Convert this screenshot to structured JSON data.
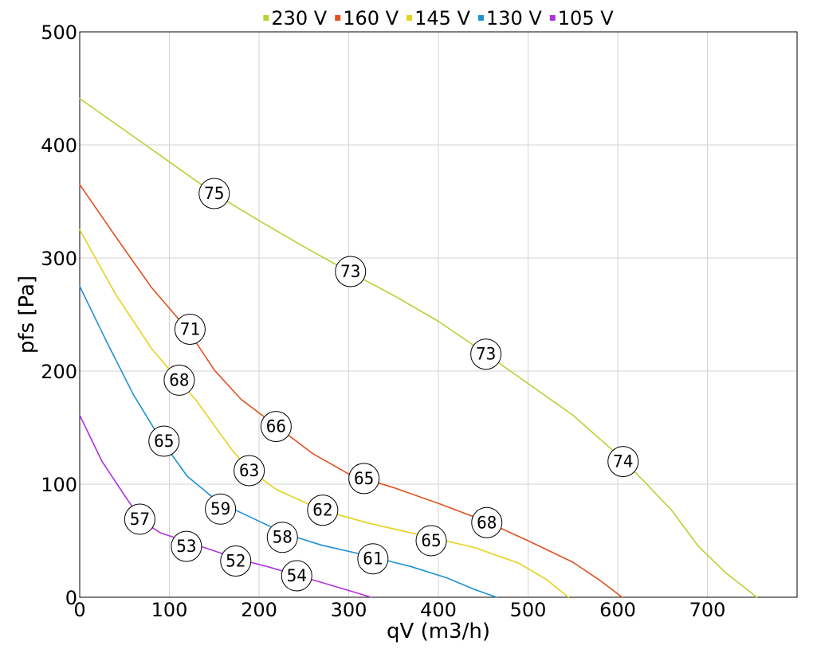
{
  "chart_data": {
    "type": "line",
    "title": "",
    "xlabel": "qV (m3/h)",
    "ylabel": "pfs [Pa]",
    "xlim": [
      0,
      800
    ],
    "ylim": [
      0,
      500
    ],
    "xticks": [
      0,
      100,
      200,
      300,
      400,
      500,
      600,
      700
    ],
    "yticks": [
      0,
      100,
      200,
      300,
      400,
      500
    ],
    "grid": true,
    "legend_position": "top-center",
    "series": [
      {
        "name": "230 V",
        "color": "#b5d334",
        "points": [
          [
            0,
            441
          ],
          [
            50,
            413
          ],
          [
            100,
            385
          ],
          [
            150,
            357
          ],
          [
            200,
            333
          ],
          [
            250,
            310
          ],
          [
            300,
            288
          ],
          [
            350,
            267
          ],
          [
            400,
            244
          ],
          [
            450,
            217
          ],
          [
            500,
            189
          ],
          [
            550,
            161
          ],
          [
            600,
            126
          ],
          [
            630,
            102
          ],
          [
            660,
            77
          ],
          [
            690,
            45
          ],
          [
            720,
            22
          ],
          [
            755,
            0
          ]
        ],
        "labels": [
          {
            "x": 150,
            "y": 357,
            "text": "75"
          },
          {
            "x": 302,
            "y": 288,
            "text": "73"
          },
          {
            "x": 453,
            "y": 215,
            "text": "73"
          },
          {
            "x": 606,
            "y": 120,
            "text": "74"
          }
        ]
      },
      {
        "name": "160 V",
        "color": "#e05020",
        "points": [
          [
            0,
            365
          ],
          [
            40,
            319
          ],
          [
            80,
            274
          ],
          [
            120,
            237
          ],
          [
            150,
            201
          ],
          [
            180,
            175
          ],
          [
            220,
            151
          ],
          [
            260,
            127
          ],
          [
            300,
            109
          ],
          [
            350,
            97
          ],
          [
            400,
            83
          ],
          [
            450,
            68
          ],
          [
            500,
            50
          ],
          [
            550,
            31
          ],
          [
            580,
            15
          ],
          [
            605,
            0
          ]
        ],
        "labels": [
          {
            "x": 123,
            "y": 237,
            "text": "71"
          },
          {
            "x": 219,
            "y": 151,
            "text": "66"
          },
          {
            "x": 317,
            "y": 105,
            "text": "65"
          },
          {
            "x": 454,
            "y": 66,
            "text": "68"
          }
        ]
      },
      {
        "name": "145 V",
        "color": "#e6d21a",
        "points": [
          [
            0,
            325
          ],
          [
            40,
            268
          ],
          [
            80,
            220
          ],
          [
            110,
            192
          ],
          [
            130,
            174
          ],
          [
            150,
            152
          ],
          [
            170,
            130
          ],
          [
            190,
            112
          ],
          [
            220,
            95
          ],
          [
            270,
            77
          ],
          [
            320,
            66
          ],
          [
            380,
            55
          ],
          [
            440,
            44
          ],
          [
            490,
            30
          ],
          [
            520,
            16
          ],
          [
            545,
            0
          ]
        ],
        "labels": [
          {
            "x": 111,
            "y": 192,
            "text": "68"
          },
          {
            "x": 189,
            "y": 112,
            "text": "63"
          },
          {
            "x": 271,
            "y": 77,
            "text": "62"
          },
          {
            "x": 392,
            "y": 50,
            "text": "65"
          }
        ]
      },
      {
        "name": "130 V",
        "color": "#1f8fd6",
        "points": [
          [
            0,
            275
          ],
          [
            30,
            226
          ],
          [
            60,
            179
          ],
          [
            90,
            140
          ],
          [
            120,
            107
          ],
          [
            155,
            84
          ],
          [
            190,
            71
          ],
          [
            230,
            56
          ],
          [
            270,
            46
          ],
          [
            320,
            37
          ],
          [
            370,
            27
          ],
          [
            410,
            17
          ],
          [
            440,
            7
          ],
          [
            465,
            0
          ]
        ],
        "labels": [
          {
            "x": 94,
            "y": 138,
            "text": "65"
          },
          {
            "x": 157,
            "y": 78,
            "text": "59"
          },
          {
            "x": 226,
            "y": 53,
            "text": "58"
          },
          {
            "x": 327,
            "y": 34,
            "text": "61"
          }
        ]
      },
      {
        "name": "105 V",
        "color": "#b031dd",
        "points": [
          [
            0,
            161
          ],
          [
            25,
            120
          ],
          [
            50,
            90
          ],
          [
            70,
            67
          ],
          [
            90,
            57
          ],
          [
            120,
            49
          ],
          [
            150,
            41
          ],
          [
            180,
            33
          ],
          [
            210,
            27
          ],
          [
            240,
            20
          ],
          [
            270,
            13
          ],
          [
            300,
            6
          ],
          [
            325,
            0
          ]
        ],
        "labels": [
          {
            "x": 67,
            "y": 69,
            "text": "57"
          },
          {
            "x": 119,
            "y": 45,
            "text": "53"
          },
          {
            "x": 174,
            "y": 32,
            "text": "52"
          },
          {
            "x": 242,
            "y": 19,
            "text": "54"
          }
        ]
      }
    ]
  }
}
